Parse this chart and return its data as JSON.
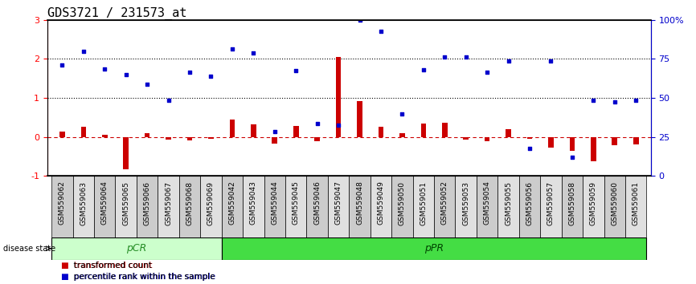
{
  "title": "GDS3721 / 231573_at",
  "samples": [
    "GSM559062",
    "GSM559063",
    "GSM559064",
    "GSM559065",
    "GSM559066",
    "GSM559067",
    "GSM559068",
    "GSM559069",
    "GSM559042",
    "GSM559043",
    "GSM559044",
    "GSM559045",
    "GSM559046",
    "GSM559047",
    "GSM559048",
    "GSM559049",
    "GSM559050",
    "GSM559051",
    "GSM559052",
    "GSM559053",
    "GSM559054",
    "GSM559055",
    "GSM559056",
    "GSM559057",
    "GSM559058",
    "GSM559059",
    "GSM559060",
    "GSM559061"
  ],
  "transformed_count": [
    0.13,
    0.27,
    0.05,
    -0.82,
    0.1,
    -0.07,
    -0.08,
    -0.04,
    0.45,
    0.32,
    -0.16,
    0.28,
    -0.1,
    2.05,
    0.93,
    0.27,
    0.1,
    0.34,
    0.37,
    -0.07,
    -0.1,
    0.2,
    -0.04,
    -0.28,
    -0.36,
    -0.63,
    -0.2,
    -0.19
  ],
  "percentile_rank": [
    1.85,
    2.2,
    1.75,
    1.6,
    1.35,
    0.95,
    1.65,
    1.55,
    2.25,
    2.15,
    0.15,
    1.7,
    0.35,
    0.3,
    3.0,
    2.7,
    0.6,
    1.72,
    2.05,
    2.05,
    1.65,
    1.95,
    -0.3,
    1.95,
    -0.52,
    0.95,
    0.9,
    0.95
  ],
  "pCR_count": 8,
  "pPR_count": 20,
  "red_color": "#cc0000",
  "blue_color": "#0000cc",
  "pCR_color": "#ccffcc",
  "pPR_color": "#44dd44",
  "ylim": [
    -1,
    3
  ],
  "yticks": [
    -1,
    0,
    1,
    2,
    3
  ],
  "y2ticks_labels": [
    "0",
    "25",
    "50",
    "75",
    "100%"
  ],
  "hlines_dotted": [
    1,
    2
  ],
  "bar_width": 0.25,
  "title_fontsize": 11,
  "tick_fontsize": 8,
  "sample_fontsize": 6.5
}
